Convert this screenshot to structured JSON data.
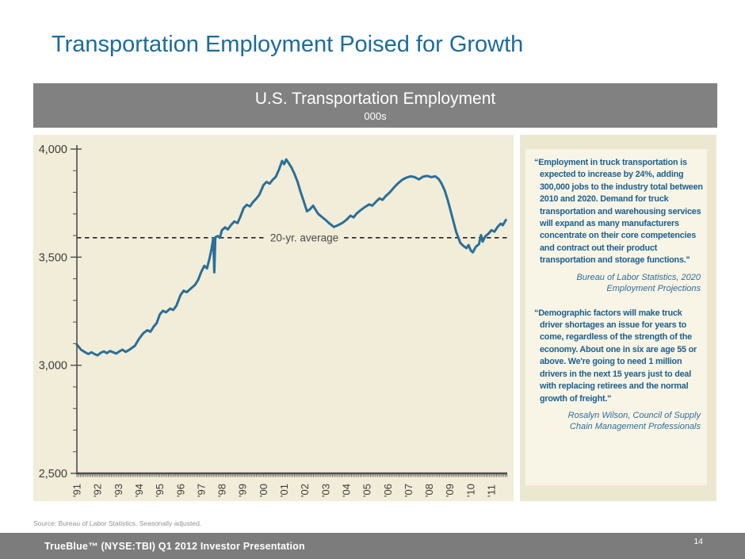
{
  "page": {
    "title": "Transportation Employment Poised for Growth",
    "source_note": "Source: Bureau of Labor Statistics. Seasonally adjusted.",
    "footer": {
      "label": "TrueBlue™ (NYSE:TBI) Q1 2012 Investor Presentation",
      "page_number": "14"
    }
  },
  "chart_header": {
    "title": "U.S. Transportation Employment",
    "subtitle": "000s"
  },
  "quotes": [
    {
      "text": "“Employment in truck transportation is expected to increase by 24%, adding 300,000 jobs to the industry total between 2010 and 2020. Demand for truck transportation and warehousing services will expand as many manufacturers concentrate on their core competencies and contract out their product transportation and storage functions.\"",
      "attribution": "Bureau of Labor Statistics, 2020 Employment Projections"
    },
    {
      "text": "“Demographic factors will make truck driver shortages an issue for years to come, regardless of the strength of the economy. About one in six are age 55 or above. We're going to need 1 million drivers in the next 15 years just to deal with replacing retirees and the normal growth of freight.\"",
      "attribution": "Rosalyn Wilson, Council of Supply Chain Management Professionals"
    }
  ],
  "colors": {
    "title_teal": "#1d6b99",
    "header_gray": "#818181",
    "footer_gray": "#7c7c7c",
    "chart_panel_cream": "#f2edd8",
    "quote_panel_cream": "#ece7cf",
    "quote_inner_cream": "#f8f5e6",
    "quote_text_blue": "#1b5e8e",
    "series_line": "#2a6f99",
    "axis_color": "#4d4d4d",
    "average_line_color": "#222222"
  },
  "chart_data": {
    "type": "line",
    "title": "U.S. Transportation Employment",
    "units": "000s",
    "xlabel": "",
    "ylabel": "",
    "x_range": [
      1991,
      2012
    ],
    "ylim": [
      2500,
      4000
    ],
    "y_ticks": [
      2500,
      3000,
      3500,
      4000
    ],
    "y_minor_step": 100,
    "x_tick_labels": [
      "'91",
      "'92",
      "'93",
      "'94",
      "'95",
      "'96",
      "'97",
      "'98",
      "'99",
      "'00",
      "'01",
      "'02",
      "'03",
      "'04",
      "'05",
      "'06",
      "'07",
      "'08",
      "'09",
      "'10",
      "'11"
    ],
    "grid": false,
    "legend": "none",
    "average_line": {
      "label": "20-yr. average",
      "value": 3590
    },
    "series": [
      {
        "name": "U.S. Transportation Employment (000s, seasonally adjusted, monthly)",
        "points": [
          [
            1991.0,
            3096
          ],
          [
            1991.2,
            3072
          ],
          [
            1991.4,
            3060
          ],
          [
            1991.55,
            3052
          ],
          [
            1991.7,
            3060
          ],
          [
            1991.85,
            3052
          ],
          [
            1992.0,
            3046
          ],
          [
            1992.15,
            3058
          ],
          [
            1992.3,
            3064
          ],
          [
            1992.45,
            3056
          ],
          [
            1992.6,
            3066
          ],
          [
            1992.75,
            3060
          ],
          [
            1992.9,
            3054
          ],
          [
            1993.05,
            3064
          ],
          [
            1993.2,
            3072
          ],
          [
            1993.35,
            3062
          ],
          [
            1993.5,
            3070
          ],
          [
            1993.65,
            3080
          ],
          [
            1993.8,
            3090
          ],
          [
            1994.0,
            3122
          ],
          [
            1994.2,
            3148
          ],
          [
            1994.4,
            3162
          ],
          [
            1994.55,
            3155
          ],
          [
            1994.7,
            3178
          ],
          [
            1994.85,
            3195
          ],
          [
            1995.0,
            3235
          ],
          [
            1995.15,
            3252
          ],
          [
            1995.3,
            3245
          ],
          [
            1995.5,
            3262
          ],
          [
            1995.65,
            3256
          ],
          [
            1995.8,
            3275
          ],
          [
            1996.0,
            3325
          ],
          [
            1996.15,
            3345
          ],
          [
            1996.3,
            3338
          ],
          [
            1996.5,
            3355
          ],
          [
            1996.7,
            3372
          ],
          [
            1996.85,
            3395
          ],
          [
            1997.0,
            3432
          ],
          [
            1997.15,
            3460
          ],
          [
            1997.28,
            3448
          ],
          [
            1997.4,
            3495
          ],
          [
            1997.5,
            3540
          ],
          [
            1997.58,
            3588
          ],
          [
            1997.63,
            3430
          ],
          [
            1997.68,
            3592
          ],
          [
            1997.8,
            3598
          ],
          [
            1997.9,
            3590
          ],
          [
            1998.0,
            3625
          ],
          [
            1998.15,
            3638
          ],
          [
            1998.28,
            3628
          ],
          [
            1998.45,
            3650
          ],
          [
            1998.6,
            3665
          ],
          [
            1998.75,
            3658
          ],
          [
            1998.9,
            3690
          ],
          [
            1999.05,
            3728
          ],
          [
            1999.2,
            3742
          ],
          [
            1999.35,
            3735
          ],
          [
            1999.5,
            3755
          ],
          [
            1999.65,
            3770
          ],
          [
            1999.8,
            3788
          ],
          [
            2000.0,
            3833
          ],
          [
            2000.15,
            3848
          ],
          [
            2000.3,
            3840
          ],
          [
            2000.45,
            3858
          ],
          [
            2000.6,
            3872
          ],
          [
            2000.75,
            3905
          ],
          [
            2000.9,
            3945
          ],
          [
            2001.0,
            3930
          ],
          [
            2001.1,
            3952
          ],
          [
            2001.2,
            3938
          ],
          [
            2001.35,
            3915
          ],
          [
            2001.5,
            3885
          ],
          [
            2001.65,
            3848
          ],
          [
            2001.8,
            3800
          ],
          [
            2001.95,
            3758
          ],
          [
            2002.1,
            3712
          ],
          [
            2002.25,
            3722
          ],
          [
            2002.4,
            3738
          ],
          [
            2002.5,
            3722
          ],
          [
            2002.65,
            3700
          ],
          [
            2002.8,
            3688
          ],
          [
            2003.0,
            3672
          ],
          [
            2003.2,
            3655
          ],
          [
            2003.4,
            3640
          ],
          [
            2003.6,
            3648
          ],
          [
            2003.8,
            3658
          ],
          [
            2004.0,
            3672
          ],
          [
            2004.2,
            3692
          ],
          [
            2004.35,
            3684
          ],
          [
            2004.5,
            3702
          ],
          [
            2004.7,
            3718
          ],
          [
            2004.9,
            3732
          ],
          [
            2005.1,
            3744
          ],
          [
            2005.25,
            3738
          ],
          [
            2005.45,
            3758
          ],
          [
            2005.6,
            3772
          ],
          [
            2005.75,
            3765
          ],
          [
            2005.9,
            3782
          ],
          [
            2006.1,
            3800
          ],
          [
            2006.3,
            3822
          ],
          [
            2006.5,
            3842
          ],
          [
            2006.7,
            3858
          ],
          [
            2006.9,
            3868
          ],
          [
            2007.1,
            3874
          ],
          [
            2007.3,
            3870
          ],
          [
            2007.5,
            3860
          ],
          [
            2007.7,
            3872
          ],
          [
            2007.9,
            3876
          ],
          [
            2008.1,
            3870
          ],
          [
            2008.3,
            3874
          ],
          [
            2008.45,
            3862
          ],
          [
            2008.6,
            3840
          ],
          [
            2008.75,
            3808
          ],
          [
            2008.9,
            3762
          ],
          [
            2009.1,
            3690
          ],
          [
            2009.3,
            3618
          ],
          [
            2009.5,
            3566
          ],
          [
            2009.65,
            3552
          ],
          [
            2009.8,
            3542
          ],
          [
            2009.9,
            3556
          ],
          [
            2010.0,
            3532
          ],
          [
            2010.1,
            3522
          ],
          [
            2010.25,
            3548
          ],
          [
            2010.4,
            3560
          ],
          [
            2010.5,
            3602
          ],
          [
            2010.58,
            3572
          ],
          [
            2010.7,
            3596
          ],
          [
            2010.85,
            3608
          ],
          [
            2011.0,
            3625
          ],
          [
            2011.15,
            3618
          ],
          [
            2011.3,
            3640
          ],
          [
            2011.45,
            3655
          ],
          [
            2011.55,
            3648
          ],
          [
            2011.7,
            3672
          ]
        ]
      }
    ]
  }
}
